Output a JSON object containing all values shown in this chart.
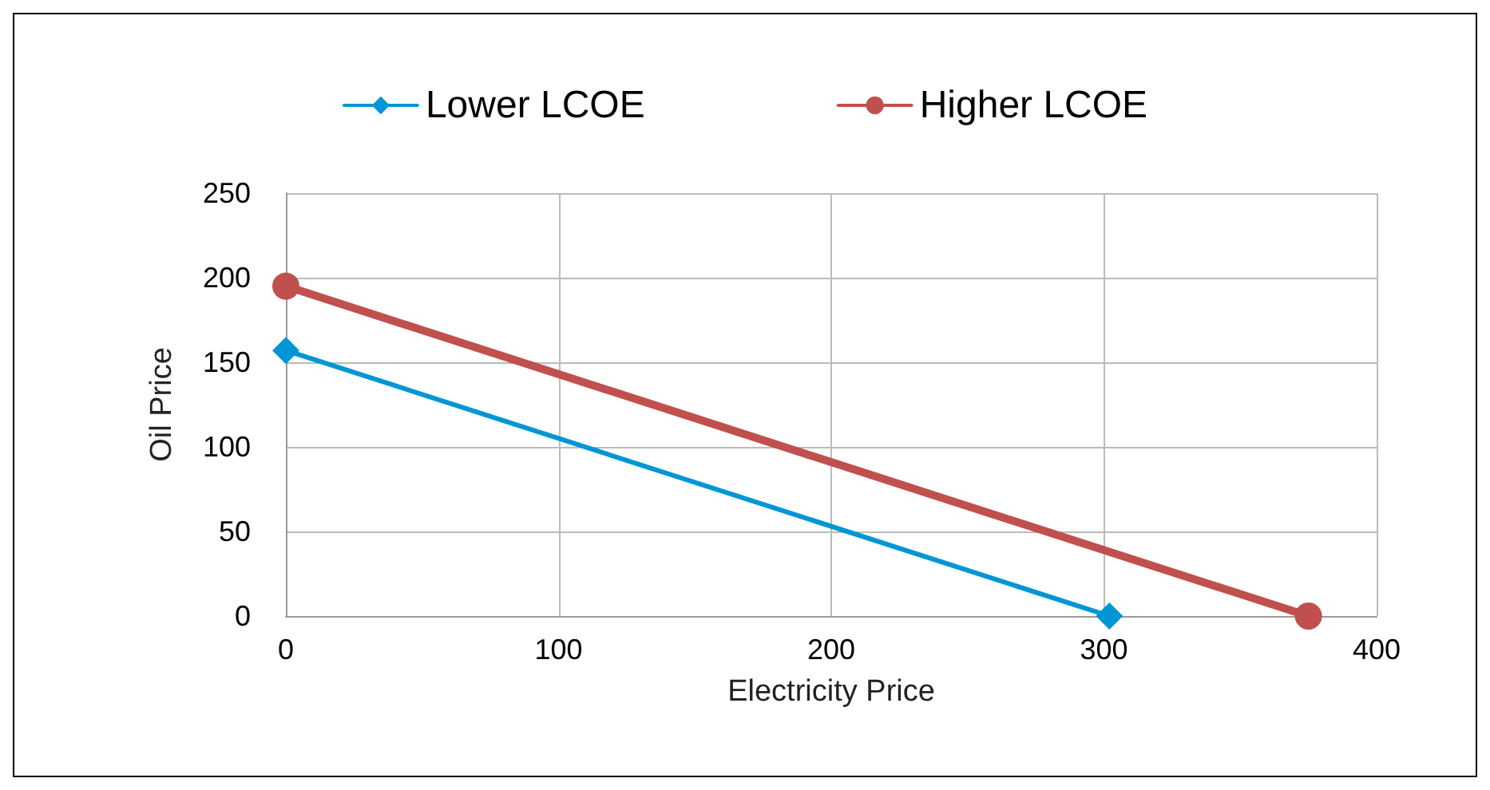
{
  "chart_data": {
    "type": "line",
    "xlabel": "Electricity Price",
    "ylabel": "Oil Price",
    "series": [
      {
        "name": "Lower LCOE",
        "color": "#0096d6",
        "x": [
          0,
          302
        ],
        "values": [
          157,
          0
        ],
        "marker": "diamond"
      },
      {
        "name": "Higher LCOE",
        "color": "#c0504d",
        "x": [
          0,
          375
        ],
        "values": [
          195,
          0
        ],
        "marker": "circle"
      }
    ],
    "xlim": [
      0,
      400
    ],
    "xticks": [
      0,
      100,
      200,
      300,
      400
    ],
    "ylim": [
      0,
      250
    ],
    "yticks": [
      0,
      50,
      100,
      150,
      200,
      250
    ],
    "grid": true,
    "legend": "top"
  }
}
